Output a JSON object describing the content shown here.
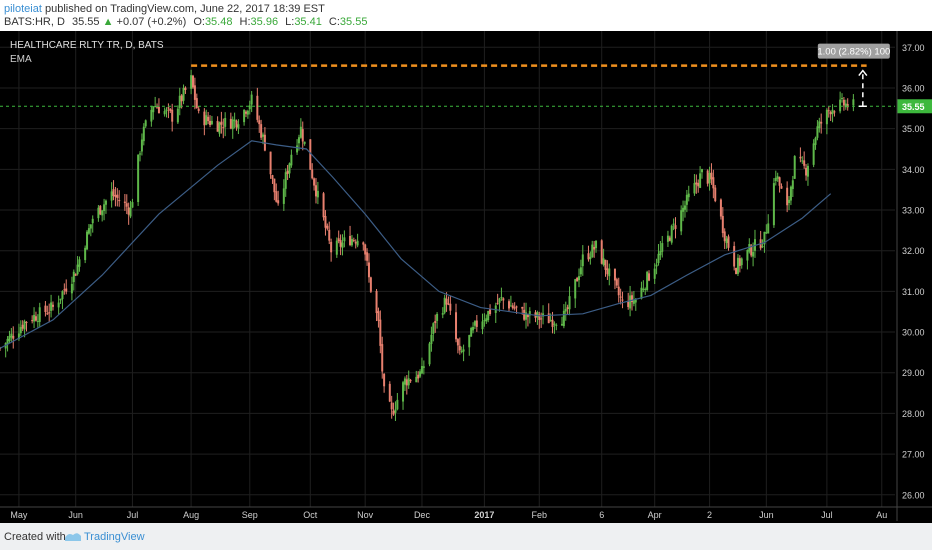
{
  "header": {
    "author": "piloteiat",
    "published": "published on TradingView.com, June 22, 2017 18:39 EST",
    "symbol": "BATS:HR, D",
    "last": "35.55",
    "change_arrow": "▲",
    "change": "+0.07 (+0.2%)",
    "open_label": "O:",
    "open": "35.48",
    "high_label": "H:",
    "high": "35.96",
    "low_label": "L:",
    "low": "35.41",
    "close_label": "C:",
    "close": "35.55"
  },
  "footer": {
    "created": "Created with",
    "brand": "TradingView"
  },
  "colors": {
    "background": "#000000",
    "grid": "#1f1f1f",
    "up": "#5fb84a",
    "down": "#e8806f",
    "ema": "#3c5d86",
    "dashed_level": "#f0901e",
    "price_line": "#3db83d",
    "axis_text": "#d0d0d0",
    "label_bg": "#a0a0a0"
  },
  "chart_data": {
    "type": "candlestick",
    "title": "HEALTHCARE RLTY TR, D, BATS",
    "indicator": "EMA",
    "ylim": [
      25.7,
      37.4
    ],
    "y_ticks": [
      "26.00",
      "27.00",
      "28.00",
      "29.00",
      "30.00",
      "31.00",
      "32.00",
      "33.00",
      "34.00",
      "35.00",
      "36.00",
      "37.00"
    ],
    "x_labels": [
      "May",
      "Jun",
      "Jul",
      "Aug",
      "Sep",
      "Oct",
      "Nov",
      "Dec",
      "2017",
      "Feb",
      "6",
      "Apr",
      "2",
      "Jun",
      "Jul",
      "Au"
    ],
    "x_start": "2016-04-22",
    "x_end": "2017-08-08",
    "date_ticks": [
      "2016-05-02",
      "2016-06-01",
      "2016-07-01",
      "2016-08-01",
      "2016-09-01",
      "2016-10-03",
      "2016-11-01",
      "2016-12-01",
      "2017-01-03",
      "2017-02-01",
      "2017-03-06",
      "2017-04-03",
      "2017-05-02",
      "2017-06-01",
      "2017-07-03",
      "2017-08-01"
    ],
    "price_path": [
      [
        "2016-04-22",
        29.6
      ],
      [
        "2016-05-06",
        30.3
      ],
      [
        "2016-05-20",
        30.6
      ],
      [
        "2016-06-01",
        31.5
      ],
      [
        "2016-06-10",
        32.8
      ],
      [
        "2016-06-20",
        33.4
      ],
      [
        "2016-06-30",
        33.0
      ],
      [
        "2016-07-06",
        34.8
      ],
      [
        "2016-07-12",
        35.6
      ],
      [
        "2016-07-22",
        35.3
      ],
      [
        "2016-08-01",
        36.2
      ],
      [
        "2016-08-05",
        35.3
      ],
      [
        "2016-08-15",
        35.1
      ],
      [
        "2016-08-25",
        35.2
      ],
      [
        "2016-09-02",
        35.7
      ],
      [
        "2016-09-09",
        34.6
      ],
      [
        "2016-09-16",
        33.0
      ],
      [
        "2016-09-23",
        34.4
      ],
      [
        "2016-09-28",
        35.0
      ],
      [
        "2016-10-06",
        33.5
      ],
      [
        "2016-10-14",
        32.0
      ],
      [
        "2016-10-24",
        32.3
      ],
      [
        "2016-10-31",
        32.3
      ],
      [
        "2016-11-03",
        31.3
      ],
      [
        "2016-11-08",
        30.2
      ],
      [
        "2016-11-11",
        28.5
      ],
      [
        "2016-11-15",
        28.0
      ],
      [
        "2016-11-22",
        28.8
      ],
      [
        "2016-12-01",
        29.0
      ],
      [
        "2016-12-08",
        30.3
      ],
      [
        "2016-12-14",
        30.8
      ],
      [
        "2016-12-21",
        29.4
      ],
      [
        "2016-12-30",
        30.2
      ],
      [
        "2017-01-12",
        30.8
      ],
      [
        "2017-01-25",
        30.4
      ],
      [
        "2017-02-08",
        30.3
      ],
      [
        "2017-02-15",
        30.4
      ],
      [
        "2017-02-24",
        31.8
      ],
      [
        "2017-03-03",
        32.1
      ],
      [
        "2017-03-10",
        31.4
      ],
      [
        "2017-03-17",
        30.7
      ],
      [
        "2017-03-24",
        30.8
      ],
      [
        "2017-03-31",
        31.4
      ],
      [
        "2017-04-10",
        32.3
      ],
      [
        "2017-04-21",
        33.3
      ],
      [
        "2017-04-28",
        33.9
      ],
      [
        "2017-05-03",
        33.7
      ],
      [
        "2017-05-10",
        32.4
      ],
      [
        "2017-05-16",
        31.6
      ],
      [
        "2017-05-23",
        32.0
      ],
      [
        "2017-05-31",
        32.3
      ],
      [
        "2017-06-06",
        33.9
      ],
      [
        "2017-06-12",
        33.0
      ],
      [
        "2017-06-16",
        34.2
      ],
      [
        "2017-06-22",
        34.0
      ],
      [
        "2017-06-28",
        35.0
      ],
      [
        "2017-07-05",
        35.5
      ],
      [
        "2017-07-12",
        35.6
      ],
      [
        "2017-07-17",
        35.55
      ]
    ],
    "ema_path": [
      [
        "2016-04-22",
        29.6
      ],
      [
        "2016-05-20",
        30.3
      ],
      [
        "2016-06-15",
        31.4
      ],
      [
        "2016-07-15",
        32.9
      ],
      [
        "2016-08-15",
        34.1
      ],
      [
        "2016-09-02",
        34.7
      ],
      [
        "2016-09-15",
        34.6
      ],
      [
        "2016-10-01",
        34.5
      ],
      [
        "2016-10-15",
        33.8
      ],
      [
        "2016-11-01",
        32.9
      ],
      [
        "2016-11-20",
        31.8
      ],
      [
        "2016-12-10",
        31.0
      ],
      [
        "2017-01-01",
        30.6
      ],
      [
        "2017-02-01",
        30.4
      ],
      [
        "2017-02-24",
        30.45
      ],
      [
        "2017-03-15",
        30.7
      ],
      [
        "2017-04-01",
        30.9
      ],
      [
        "2017-04-20",
        31.4
      ],
      [
        "2017-05-10",
        31.9
      ],
      [
        "2017-05-31",
        32.2
      ],
      [
        "2017-06-20",
        32.8
      ],
      [
        "2017-07-05",
        33.4
      ]
    ],
    "resistance_level": 36.55,
    "resistance_start": "2016-08-01",
    "resistance_end": "2017-07-24",
    "current_price": 35.55,
    "current_price_label": "35.55",
    "measure_label": "1.00 (2.82%) 100",
    "measure_date": "2017-07-22"
  }
}
